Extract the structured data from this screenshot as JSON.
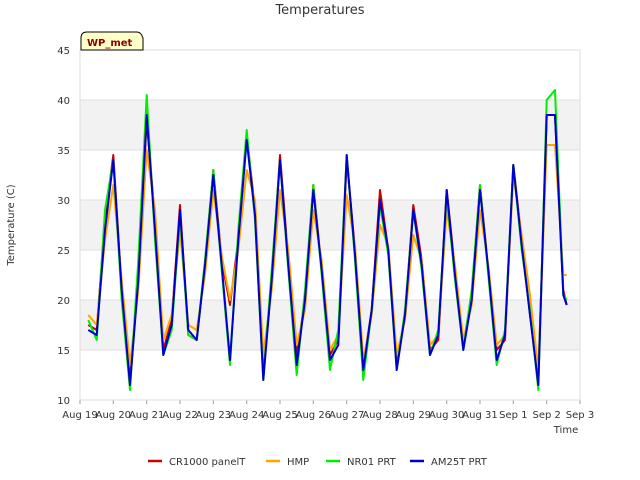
{
  "chart_data": {
    "type": "line",
    "title": "Temperatures",
    "xlabel": "Time",
    "ylabel": "Temperature (C)",
    "badge": "WP_met",
    "ylim": [
      10,
      45
    ],
    "yticks": [
      10,
      15,
      20,
      25,
      30,
      35,
      40,
      45
    ],
    "xlim": [
      0,
      15
    ],
    "xticks": [
      {
        "x": 0,
        "label": "Aug 19"
      },
      {
        "x": 1,
        "label": "Aug 20"
      },
      {
        "x": 2,
        "label": "Aug 21"
      },
      {
        "x": 3,
        "label": "Aug 22"
      },
      {
        "x": 4,
        "label": "Aug 23"
      },
      {
        "x": 5,
        "label": "Aug 24"
      },
      {
        "x": 6,
        "label": "Aug 25"
      },
      {
        "x": 7,
        "label": "Aug 26"
      },
      {
        "x": 8,
        "label": "Aug 27"
      },
      {
        "x": 9,
        "label": "Aug 28"
      },
      {
        "x": 10,
        "label": "Aug 29"
      },
      {
        "x": 11,
        "label": "Aug 30"
      },
      {
        "x": 12,
        "label": "Aug 31"
      },
      {
        "x": 13,
        "label": "Sep 1"
      },
      {
        "x": 14,
        "label": "Sep 2"
      },
      {
        "x": 15,
        "label": "Sep 3"
      }
    ],
    "x": [
      0.25,
      0.5,
      0.75,
      1.0,
      1.25,
      1.5,
      1.75,
      2.0,
      2.25,
      2.5,
      2.75,
      3.0,
      3.25,
      3.5,
      3.75,
      4.0,
      4.25,
      4.5,
      4.75,
      5.0,
      5.25,
      5.5,
      5.75,
      6.0,
      6.25,
      6.5,
      6.75,
      7.0,
      7.25,
      7.5,
      7.75,
      8.0,
      8.25,
      8.5,
      8.75,
      9.0,
      9.25,
      9.5,
      9.75,
      10.0,
      10.25,
      10.5,
      10.75,
      11.0,
      11.25,
      11.5,
      11.75,
      12.0,
      12.25,
      12.5,
      12.75,
      13.0,
      13.25,
      13.5,
      13.75,
      14.0,
      14.25,
      14.5,
      14.6
    ],
    "series": [
      {
        "name": "CR1000 panelT",
        "color": "#cc0000",
        "values": [
          17.5,
          17.0,
          28.0,
          34.5,
          21.0,
          12.0,
          22.0,
          38.0,
          28.0,
          15.0,
          18.0,
          29.5,
          16.5,
          16.0,
          23.5,
          33.0,
          24.0,
          19.5,
          26.0,
          36.5,
          29.0,
          12.5,
          22.0,
          34.5,
          24.0,
          14.5,
          20.0,
          31.5,
          23.0,
          14.5,
          16.0,
          34.0,
          25.0,
          13.5,
          19.0,
          31.0,
          25.0,
          13.5,
          18.5,
          29.5,
          24.0,
          15.0,
          16.0,
          31.0,
          23.0,
          15.5,
          20.5,
          31.5,
          23.0,
          15.0,
          16.0,
          33.5,
          26.0,
          18.5,
          12.0,
          38.5,
          38.5,
          21.0,
          19.5
        ]
      },
      {
        "name": "HMP",
        "color": "#ffa500",
        "values": [
          18.5,
          17.5,
          26.0,
          31.5,
          22.0,
          13.5,
          21.0,
          35.0,
          29.0,
          16.0,
          18.5,
          27.0,
          17.5,
          17.0,
          22.5,
          31.0,
          24.5,
          20.0,
          25.0,
          33.0,
          30.0,
          14.5,
          21.0,
          31.0,
          25.0,
          15.5,
          19.0,
          29.0,
          24.0,
          15.0,
          16.5,
          30.5,
          25.5,
          14.0,
          18.5,
          27.5,
          25.5,
          14.5,
          18.0,
          26.5,
          24.0,
          15.5,
          16.5,
          29.0,
          23.5,
          16.0,
          19.5,
          29.0,
          23.5,
          15.5,
          16.5,
          32.5,
          26.5,
          20.5,
          13.0,
          35.5,
          35.5,
          22.5,
          22.5
        ]
      },
      {
        "name": "NR01 PRT",
        "color": "#00ee00",
        "values": [
          18.0,
          16.0,
          29.0,
          34.0,
          20.0,
          11.0,
          24.0,
          40.5,
          26.0,
          14.5,
          17.0,
          28.5,
          16.5,
          16.0,
          24.0,
          33.0,
          23.0,
          13.5,
          27.0,
          37.0,
          28.0,
          12.0,
          23.0,
          34.0,
          23.0,
          12.5,
          21.0,
          31.5,
          22.5,
          13.0,
          17.0,
          34.5,
          24.0,
          12.0,
          19.0,
          29.5,
          24.5,
          13.0,
          19.0,
          29.0,
          23.0,
          14.5,
          17.0,
          30.5,
          22.0,
          15.0,
          21.0,
          31.5,
          22.5,
          13.5,
          17.0,
          33.5,
          25.0,
          19.0,
          11.0,
          40.0,
          41.0,
          20.5,
          20.0
        ]
      },
      {
        "name": "AM25T PRT",
        "color": "#0000cc",
        "values": [
          17.0,
          16.5,
          27.0,
          34.0,
          21.0,
          11.5,
          22.0,
          38.5,
          27.0,
          14.5,
          17.5,
          29.0,
          17.0,
          16.0,
          23.5,
          32.5,
          23.5,
          14.0,
          26.0,
          36.0,
          28.5,
          12.0,
          22.0,
          34.0,
          23.5,
          13.5,
          20.0,
          31.0,
          23.0,
          14.0,
          15.5,
          34.5,
          24.5,
          13.0,
          19.0,
          30.0,
          25.0,
          13.0,
          18.5,
          29.0,
          23.5,
          14.5,
          16.5,
          31.0,
          22.5,
          15.0,
          20.0,
          31.0,
          23.0,
          14.0,
          16.5,
          33.5,
          25.5,
          18.5,
          11.5,
          38.5,
          38.5,
          20.5,
          19.5
        ]
      }
    ]
  }
}
